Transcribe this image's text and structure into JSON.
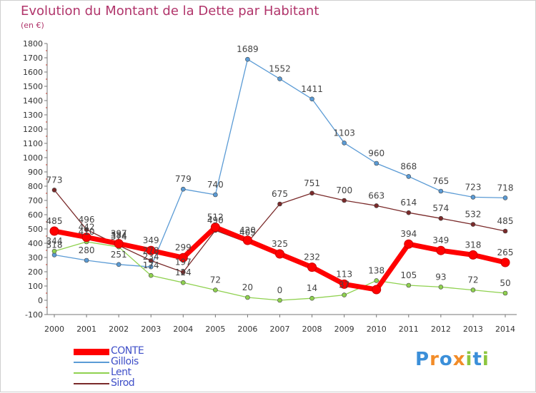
{
  "chart_data": {
    "type": "line",
    "title": "Evolution du Montant de la Dette par Habitant",
    "subtitle": "(en €)",
    "categories": [
      "2000",
      "2001",
      "2002",
      "2003",
      "2004",
      "2005",
      "2006",
      "2007",
      "2008",
      "2009",
      "2010",
      "2011",
      "2012",
      "2013",
      "2014"
    ],
    "ylim": [
      -100,
      1800
    ],
    "yticks": [
      -100,
      0,
      100,
      200,
      300,
      400,
      500,
      600,
      700,
      800,
      900,
      1000,
      1100,
      1200,
      1300,
      1400,
      1500,
      1600,
      1700,
      1800
    ],
    "grid": false,
    "legend_position": "bottom-left",
    "series": [
      {
        "name": "CONTE",
        "color": "#ff0000",
        "values": [
          485,
          442,
          397,
          349,
          299,
          512,
          420,
          325,
          232,
          113,
          75,
          394,
          349,
          318,
          265
        ],
        "labels": [
          "485",
          "442",
          "397",
          "349",
          "299",
          "512",
          "420",
          "325",
          "232",
          "113",
          "",
          "394",
          "349",
          "318",
          "265"
        ]
      },
      {
        "name": "Gillois",
        "color": "#5b9bd5",
        "values": [
          318,
          280,
          251,
          234,
          779,
          740,
          1689,
          1552,
          1411,
          1103,
          960,
          868,
          765,
          723,
          718
        ],
        "labels": [
          "318",
          "280",
          "251",
          "234",
          "779",
          "740",
          "1689",
          "1552",
          "1411",
          "1103",
          "960",
          "868",
          "765",
          "723",
          "718"
        ]
      },
      {
        "name": "Lent",
        "color": "#8fd14f",
        "values": [
          344,
          410,
          374,
          174,
          124,
          72,
          20,
          0,
          14,
          37,
          138,
          105,
          93,
          72,
          50
        ],
        "labels": [
          "344",
          "410",
          "374",
          "174",
          "124",
          "72",
          "20",
          "0",
          "14",
          "37",
          "138",
          "105",
          "93",
          "72",
          "50"
        ]
      },
      {
        "name": "Sirod",
        "color": "#7a2a2a",
        "values": [
          773,
          496,
          384,
          278,
          197,
          490,
          405,
          675,
          751,
          700,
          663,
          614,
          574,
          532,
          485
        ],
        "labels": [
          "773",
          "496",
          "384",
          "278",
          "197",
          "490",
          "405",
          "675",
          "751",
          "700",
          "663",
          "614",
          "574",
          "532",
          "485"
        ]
      }
    ]
  },
  "logo": {
    "text": "Proxiti",
    "letters": [
      "P",
      "r",
      "o",
      "x",
      "i",
      "t",
      "i"
    ],
    "colors": [
      "#3b8fd9",
      "#f28c28",
      "#3b8fd9",
      "#f28c28",
      "#8dc63f",
      "#3b8fd9",
      "#8dc63f"
    ]
  }
}
